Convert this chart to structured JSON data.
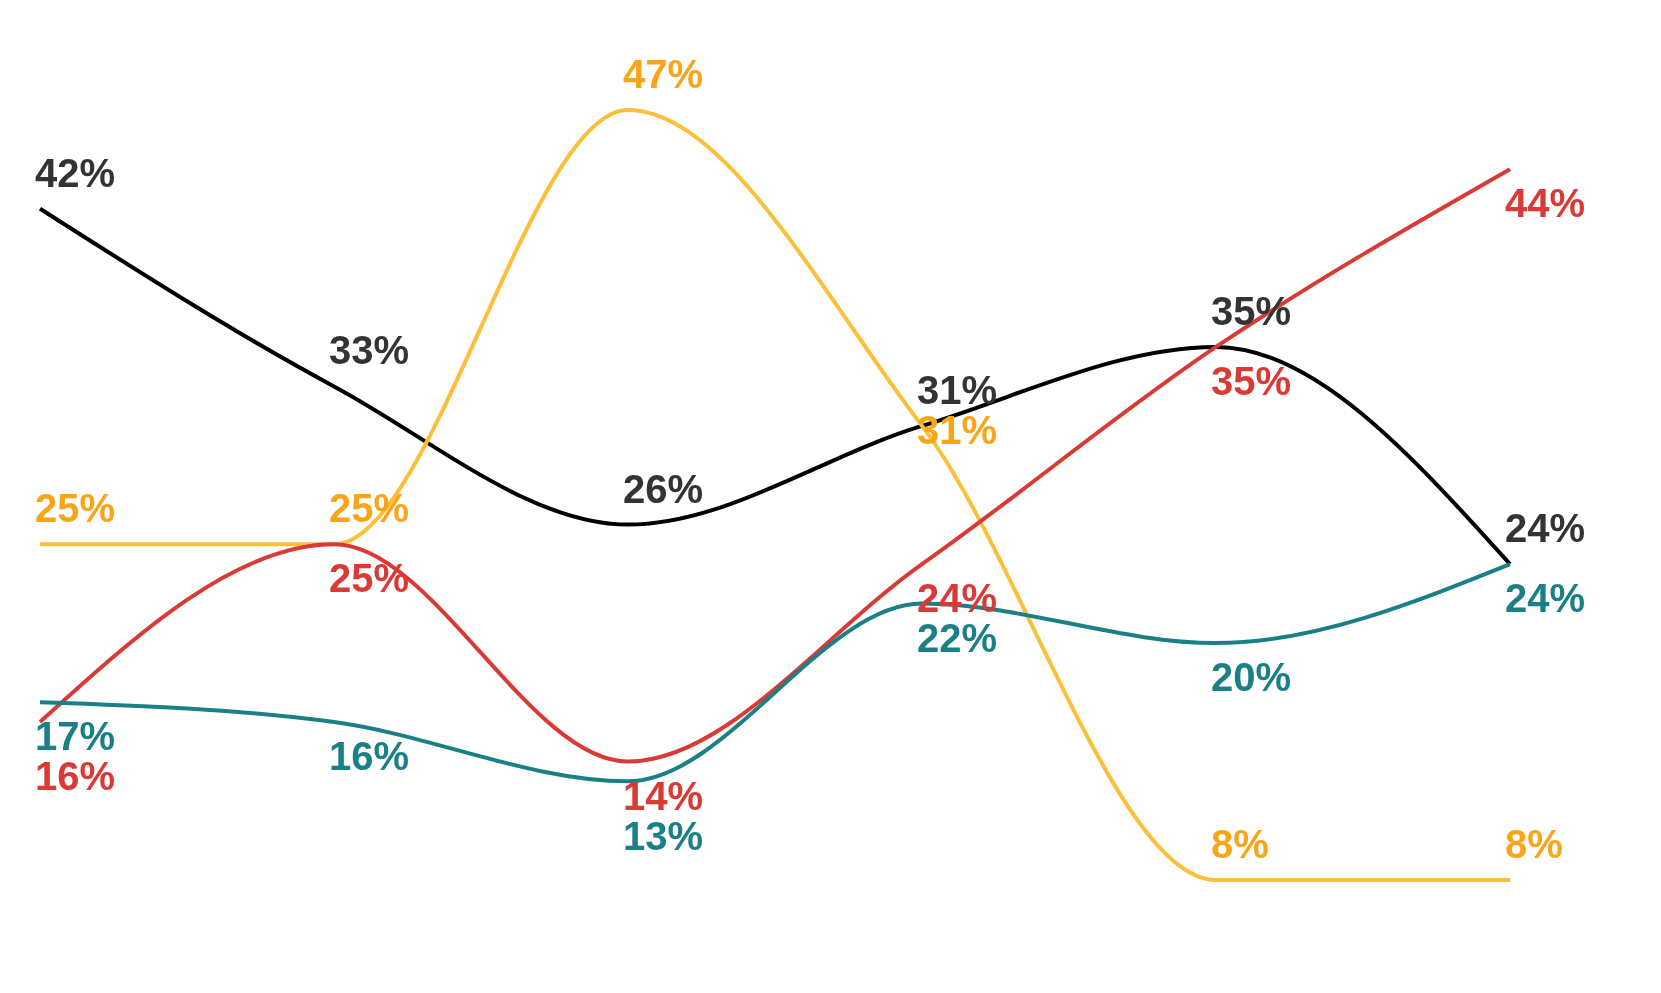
{
  "chart_data": {
    "type": "line",
    "categories": [
      null,
      null,
      null,
      null,
      null,
      null
    ],
    "marker": "none",
    "line_style": "solid",
    "series": [
      {
        "color": "#000000",
        "values": [
          42,
          33,
          26,
          31,
          35,
          24
        ],
        "value_labels": [
          "42%",
          "33%",
          "26%",
          "31%",
          "35%",
          "24%"
        ]
      },
      {
        "color": "#fbbf3a",
        "values": [
          25,
          25,
          47,
          31,
          8,
          8
        ],
        "value_labels": [
          "25%",
          "25%",
          "47%",
          "31%",
          "8%",
          "8%"
        ]
      },
      {
        "color": "#d93a35",
        "values": [
          16,
          25,
          14,
          24,
          35,
          44
        ],
        "value_labels": [
          "16%",
          "25%",
          "14%",
          "24%",
          "35%",
          "44%"
        ]
      },
      {
        "color": "#1a7f86",
        "values": [
          17,
          16,
          13,
          22,
          20,
          24
        ],
        "value_labels": [
          "17%",
          "16%",
          "13%",
          "22%",
          "20%",
          "24%"
        ]
      }
    ]
  }
}
